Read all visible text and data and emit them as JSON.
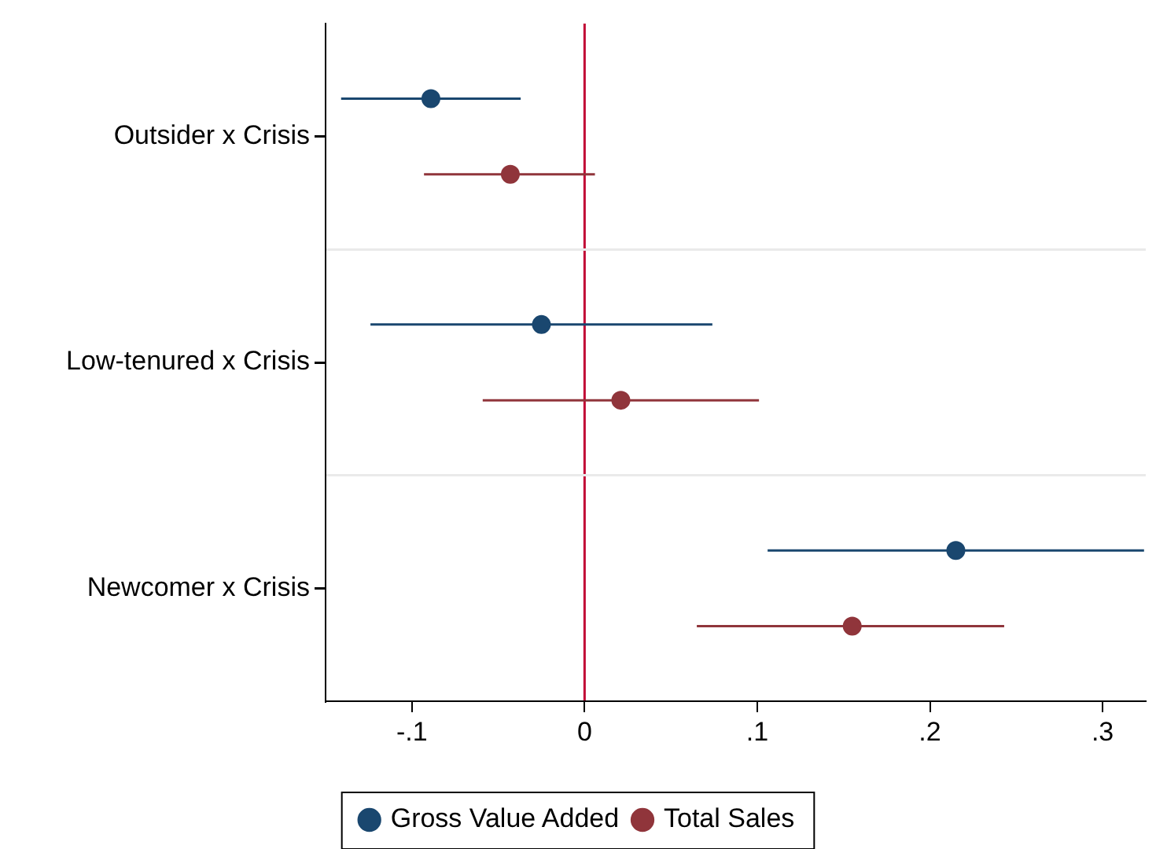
{
  "chart_data": {
    "type": "scatter",
    "orientation": "horizontal",
    "categories": [
      "Outsider x Crisis",
      "Low-tenured x Crisis",
      "Newcomer x Crisis"
    ],
    "series": [
      {
        "name": "Gross Value Added",
        "color": "#1a476f",
        "values": [
          -0.089,
          -0.025,
          0.215
        ],
        "errors": [
          [
            -0.141,
            -0.037
          ],
          [
            -0.124,
            0.074
          ],
          [
            0.106,
            0.324
          ]
        ]
      },
      {
        "name": "Total Sales",
        "color": "#90353b",
        "values": [
          -0.043,
          0.021,
          0.155
        ],
        "errors": [
          [
            -0.093,
            0.006
          ],
          [
            -0.059,
            0.101
          ],
          [
            0.065,
            0.243
          ]
        ]
      }
    ],
    "xlim": [
      -0.15,
      0.325
    ],
    "xticks": [
      {
        "value": -0.1,
        "label": "-.1"
      },
      {
        "value": 0,
        "label": "0"
      },
      {
        "value": 0.1,
        "label": ".1"
      },
      {
        "value": 0.2,
        "label": ".2"
      },
      {
        "value": 0.3,
        "label": ".3"
      }
    ],
    "ref_lines": [
      {
        "axis": "x",
        "value": 0,
        "color": "#c10534"
      }
    ],
    "grid": "y",
    "legend": "bottom",
    "marker": "circle"
  }
}
